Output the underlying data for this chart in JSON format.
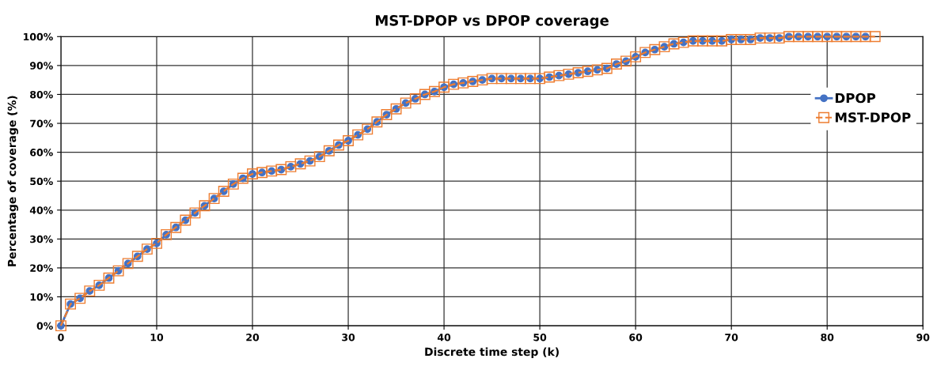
{
  "chart_data": {
    "type": "line",
    "title": "MST-DPOP vs DPOP coverage",
    "xlabel": "Discrete time step (k)",
    "ylabel": "Percentage of coverage (%)",
    "xlim": [
      0,
      90
    ],
    "xticks": [
      0,
      10,
      20,
      30,
      40,
      50,
      60,
      70,
      80,
      90
    ],
    "ylim": [
      0,
      100
    ],
    "yticks": [
      {
        "value": 0,
        "label": "0%"
      },
      {
        "value": 10,
        "label": "10%"
      },
      {
        "value": 20,
        "label": "20%"
      },
      {
        "value": 30,
        "label": "30%"
      },
      {
        "value": 40,
        "label": "40%"
      },
      {
        "value": 50,
        "label": "50%"
      },
      {
        "value": 60,
        "label": "60%"
      },
      {
        "value": 70,
        "label": "70%"
      },
      {
        "value": 80,
        "label": "80%"
      },
      {
        "value": 90,
        "label": "90%"
      },
      {
        "value": 100,
        "label": "100%"
      }
    ],
    "grid": true,
    "legend": "right",
    "series": [
      {
        "name": "DPOP",
        "color": "#4472c4",
        "marker": "circle",
        "line_style": "solid",
        "x": [
          0,
          1,
          2,
          3,
          4,
          5,
          6,
          7,
          8,
          9,
          10,
          11,
          12,
          13,
          14,
          15,
          16,
          17,
          18,
          19,
          20,
          21,
          22,
          23,
          24,
          25,
          26,
          27,
          28,
          29,
          30,
          31,
          32,
          33,
          34,
          35,
          36,
          37,
          38,
          39,
          40,
          41,
          42,
          43,
          44,
          45,
          46,
          47,
          48,
          49,
          50,
          51,
          52,
          53,
          54,
          55,
          56,
          57,
          58,
          59,
          60,
          61,
          62,
          63,
          64,
          65,
          66,
          67,
          68,
          69,
          70,
          71,
          72,
          73,
          74,
          75,
          76,
          77,
          78,
          79,
          80,
          81,
          82,
          83,
          84
        ],
        "values": [
          0,
          7.5,
          9.5,
          12,
          14,
          16.5,
          19,
          21.5,
          24,
          26.5,
          28.5,
          31.5,
          34,
          36.5,
          39,
          41.5,
          44,
          46.5,
          49,
          51,
          52.5,
          53,
          53.5,
          54,
          55,
          56,
          57,
          58.5,
          60.5,
          62.5,
          64,
          66,
          68,
          70.5,
          73,
          75,
          77,
          78.5,
          80,
          81,
          82.5,
          83.5,
          84,
          84.5,
          85,
          85.5,
          85.5,
          85.5,
          85.5,
          85.5,
          85.5,
          86,
          86.5,
          87,
          87.5,
          88,
          88.5,
          89,
          90.5,
          91.5,
          93,
          94.5,
          95.5,
          96.5,
          97.5,
          98,
          98.5,
          98.5,
          98.5,
          98.5,
          99,
          99,
          99,
          99.5,
          99.5,
          99.5,
          100,
          100,
          100,
          100,
          100,
          100,
          100,
          100,
          100
        ]
      },
      {
        "name": "MST-DPOP",
        "color": "#ed7d31",
        "marker": "square",
        "line_style": "dashed",
        "x": [
          0,
          1,
          2,
          3,
          4,
          5,
          6,
          7,
          8,
          9,
          10,
          11,
          12,
          13,
          14,
          15,
          16,
          17,
          18,
          19,
          20,
          21,
          22,
          23,
          24,
          25,
          26,
          27,
          28,
          29,
          30,
          31,
          32,
          33,
          34,
          35,
          36,
          37,
          38,
          39,
          40,
          41,
          42,
          43,
          44,
          45,
          46,
          47,
          48,
          49,
          50,
          51,
          52,
          53,
          54,
          55,
          56,
          57,
          58,
          59,
          60,
          61,
          62,
          63,
          64,
          65,
          66,
          67,
          68,
          69,
          70,
          71,
          72,
          73,
          74,
          75,
          76,
          77,
          78,
          79,
          80,
          81,
          82,
          83,
          84,
          85
        ],
        "values": [
          0,
          7.5,
          9.5,
          12,
          14,
          16.5,
          19,
          21.5,
          24,
          26.5,
          28.5,
          31.5,
          34,
          36.5,
          39,
          41.5,
          44,
          46.5,
          49,
          51,
          52.5,
          53,
          53.5,
          54,
          55,
          56,
          57,
          58.5,
          60.5,
          62.5,
          64,
          66,
          68,
          70.5,
          73,
          75,
          77,
          78.5,
          80,
          81,
          82.5,
          83.5,
          84,
          84.5,
          85,
          85.5,
          85.5,
          85.5,
          85.5,
          85.5,
          85.5,
          86,
          86.5,
          87,
          87.5,
          88,
          88.5,
          89,
          90.5,
          91.5,
          93,
          94.5,
          95.5,
          96.5,
          97.5,
          98,
          98.5,
          98.5,
          98.5,
          98.5,
          99,
          99,
          99,
          99.5,
          99.5,
          99.5,
          100,
          100,
          100,
          100,
          100,
          100,
          100,
          100,
          100,
          100
        ]
      }
    ]
  }
}
